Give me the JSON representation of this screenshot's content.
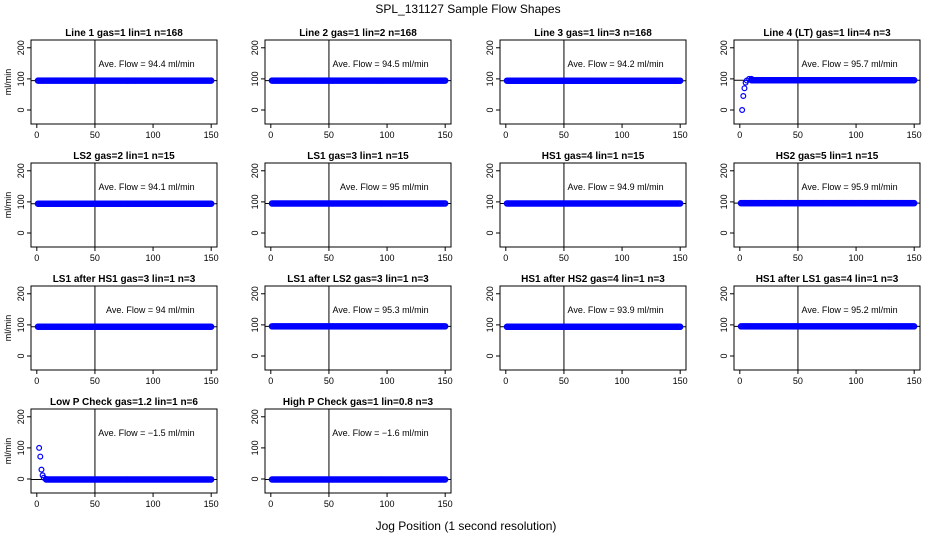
{
  "title": "SPL_131127  Sample Flow Shapes",
  "xlabel": "Jog Position (1 second resolution)",
  "ylabel": "ml/min",
  "colors": {
    "points": "#0000ff",
    "line": "#000000"
  },
  "xticks": [
    0,
    50,
    100,
    150
  ],
  "yticks": [
    0,
    100,
    200
  ],
  "xlim": [
    -5,
    155
  ],
  "ylim": [
    -45,
    225
  ],
  "vline_x": 50,
  "chart_data": [
    {
      "type": "scatter",
      "title": "Line 1 gas=1 lin=1 n=168",
      "annotation": "Ave. Flow = 94.4  ml/min",
      "hline": 94.4,
      "transient": []
    },
    {
      "type": "scatter",
      "title": "Line 2 gas=1 lin=2 n=168",
      "annotation": "Ave. Flow = 94.5  ml/min",
      "hline": 94.5,
      "transient": []
    },
    {
      "type": "scatter",
      "title": "Line 3 gas=1 lin=3 n=168",
      "annotation": "Ave. Flow = 94.2  ml/min",
      "hline": 94.2,
      "transient": []
    },
    {
      "type": "scatter",
      "title": "Line 4 (LT) gas=1 lin=4 n=3",
      "annotation": "Ave. Flow = 95.7  ml/min",
      "hline": 95.7,
      "transient": [
        [
          2,
          0
        ],
        [
          3,
          45
        ],
        [
          4,
          70
        ],
        [
          5,
          88
        ],
        [
          6,
          95
        ],
        [
          8,
          100
        ],
        [
          10,
          100
        ]
      ]
    },
    {
      "type": "scatter",
      "title": "LS2 gas=2 lin=1 n=15",
      "annotation": "Ave. Flow = 94.1  ml/min",
      "hline": 94.1,
      "transient": []
    },
    {
      "type": "scatter",
      "title": "LS1 gas=3 lin=1 n=15",
      "annotation": "Ave. Flow = 95  ml/min",
      "hline": 95,
      "transient": []
    },
    {
      "type": "scatter",
      "title": "HS1 gas=4 lin=1 n=15",
      "annotation": "Ave. Flow = 94.9  ml/min",
      "hline": 94.9,
      "transient": []
    },
    {
      "type": "scatter",
      "title": "HS2 gas=5 lin=1 n=15",
      "annotation": "Ave. Flow = 95.9  ml/min",
      "hline": 95.9,
      "transient": []
    },
    {
      "type": "scatter",
      "title": "LS1 after HS1 gas=3 lin=1 n=3",
      "annotation": "Ave. Flow = 94  ml/min",
      "hline": 94,
      "transient": []
    },
    {
      "type": "scatter",
      "title": "LS1 after LS2 gas=3 lin=1 n=3",
      "annotation": "Ave. Flow = 95.3  ml/min",
      "hline": 95.3,
      "transient": []
    },
    {
      "type": "scatter",
      "title": "HS1 after HS2 gas=4 lin=1 n=3",
      "annotation": "Ave. Flow = 93.9  ml/min",
      "hline": 93.9,
      "transient": []
    },
    {
      "type": "scatter",
      "title": "HS1 after LS1 gas=4 lin=1 n=3",
      "annotation": "Ave. Flow = 95.2  ml/min",
      "hline": 95.2,
      "transient": []
    },
    {
      "type": "scatter",
      "title": "Low P Check gas=1.2 lin=1 n=6",
      "annotation": "Ave. Flow = −1.5  ml/min",
      "hline": -1.5,
      "transient": [
        [
          2,
          100
        ],
        [
          3,
          72
        ],
        [
          4,
          30
        ],
        [
          5,
          12
        ],
        [
          6,
          4
        ],
        [
          8,
          0
        ]
      ]
    },
    {
      "type": "scatter",
      "title": "High P Check gas=1 lin=0.8 n=3",
      "annotation": "Ave. Flow = −1.6  ml/min",
      "hline": -1.6,
      "transient": []
    }
  ]
}
